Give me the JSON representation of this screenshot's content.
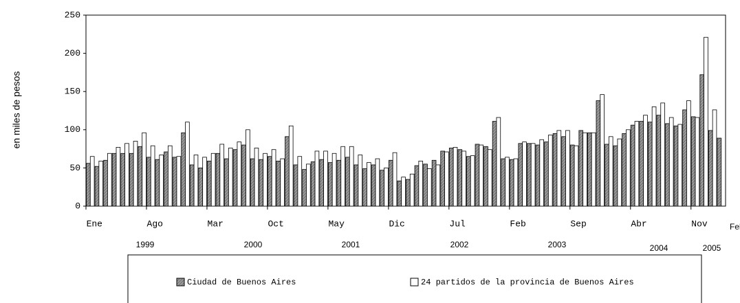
{
  "chart_data": {
    "type": "bar",
    "y_label": "en miles de pesos",
    "categories": [
      "Ene",
      null,
      null,
      null,
      null,
      null,
      null,
      "Ago",
      null,
      null,
      null,
      null,
      null,
      null,
      "Mar",
      null,
      null,
      null,
      null,
      null,
      null,
      "Oct",
      null,
      null,
      null,
      null,
      null,
      null,
      "May",
      null,
      null,
      null,
      null,
      null,
      null,
      "Dic",
      null,
      null,
      null,
      null,
      null,
      null,
      "Jul",
      null,
      null,
      null,
      null,
      null,
      null,
      "Feb",
      null,
      null,
      null,
      null,
      null,
      null,
      "Sep",
      null,
      null,
      null,
      null,
      null,
      null,
      "Abr",
      null,
      null,
      null,
      null,
      null,
      null,
      "Nov",
      null,
      null,
      "Feb"
    ],
    "year_labels": [
      "1999",
      "2000",
      "2001",
      "2002",
      "2003",
      "2004",
      "2005"
    ],
    "series": [
      {
        "name": "Ciudad de Buenos Aires",
        "color": "#8c8c8c",
        "values": [
          56,
          52,
          60,
          69,
          69,
          69,
          78,
          64,
          61,
          71,
          64,
          96,
          54,
          50,
          59,
          69,
          62,
          74,
          80,
          62,
          61,
          65,
          59,
          91,
          54,
          48,
          58,
          61,
          57,
          60,
          64,
          54,
          49,
          54,
          47,
          60,
          33,
          35,
          53,
          55,
          60,
          72,
          76,
          74,
          65,
          81,
          78,
          111,
          62,
          61,
          82,
          82,
          80,
          84,
          95,
          91,
          80,
          99,
          96,
          138,
          81,
          79,
          95,
          106,
          111,
          110,
          119,
          108,
          105,
          126,
          117,
          172,
          99,
          89
        ]
      },
      {
        "name": "24 partidos de la provincia de Buenos Aires",
        "color": "#ffffff",
        "values": [
          65,
          59,
          69,
          77,
          82,
          85,
          96,
          79,
          67,
          79,
          65,
          110,
          67,
          64,
          69,
          81,
          76,
          84,
          100,
          76,
          69,
          74,
          62,
          105,
          65,
          55,
          72,
          72,
          69,
          78,
          78,
          67,
          57,
          62,
          50,
          70,
          38,
          42,
          59,
          49,
          54,
          71,
          77,
          72,
          66,
          80,
          74,
          116,
          64,
          62,
          84,
          82,
          87,
          93,
          99,
          99,
          79,
          96,
          96,
          146,
          91,
          88,
          100,
          111,
          119,
          130,
          135,
          116,
          107,
          138,
          116,
          221,
          126,
          null
        ]
      }
    ],
    "ylim": [
      0,
      250
    ],
    "yticks": [
      0,
      50,
      100,
      150,
      200,
      250
    ],
    "grid": false
  }
}
